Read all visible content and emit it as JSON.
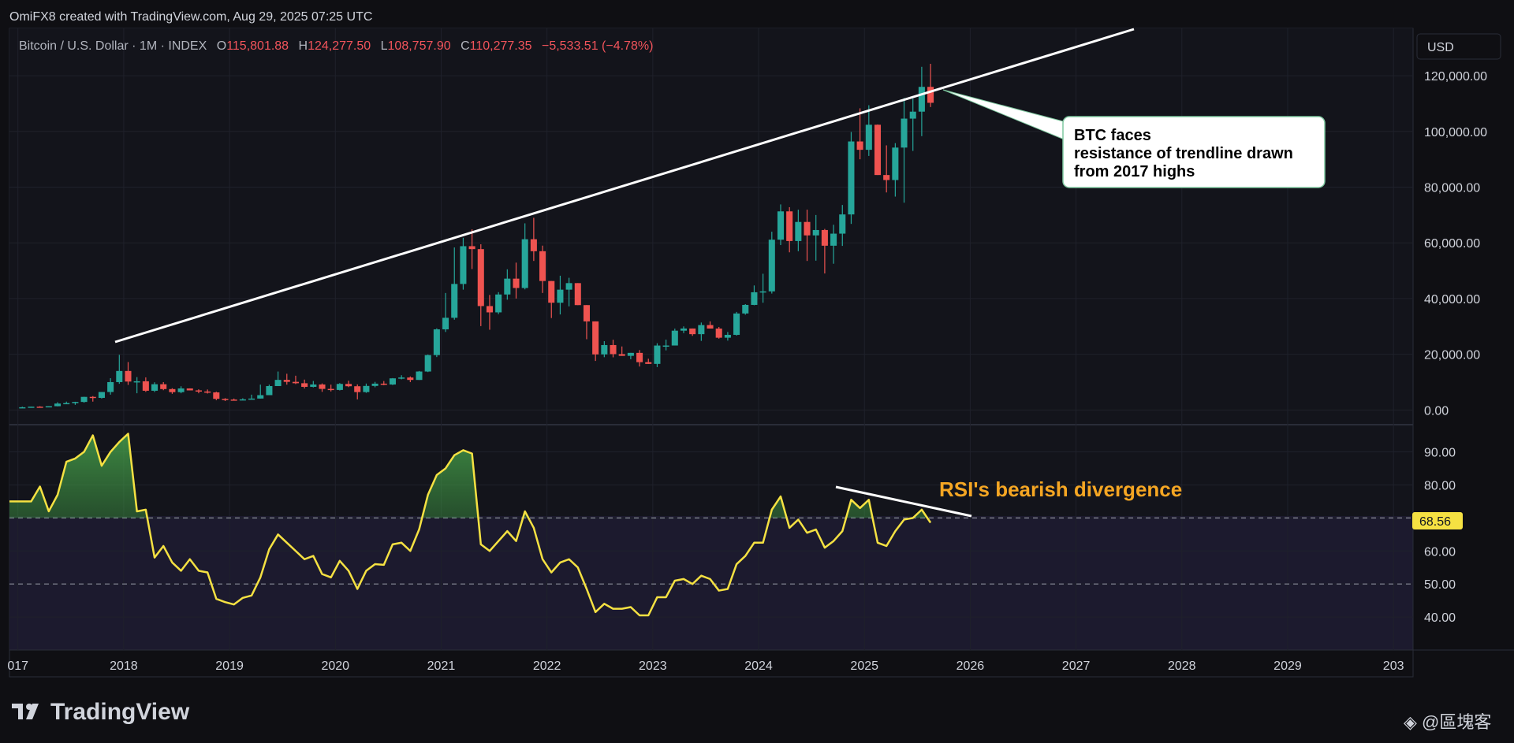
{
  "header": {
    "credit": "OmiFX8 created with TradingView.com, Aug 29, 2025 07:25 UTC",
    "symbol": "Bitcoin / U.S. Dollar · 1M · INDEX",
    "o_label": "O",
    "o_value": "115,801.88",
    "h_label": "H",
    "h_value": "124,277.50",
    "l_label": "L",
    "l_value": "108,757.90",
    "c_label": "C",
    "c_value": "110,277.35",
    "change": "−5,533.51 (−4.78%)"
  },
  "currency_button": "USD",
  "annotations": {
    "callout": [
      "BTC faces",
      "resistance of trendline drawn",
      "from 2017 highs"
    ],
    "rsi": "RSI's bearish divergence"
  },
  "rsi_current_badge": "68.56",
  "branding": {
    "logo": "TradingView",
    "watermark": "◈ @區塊客"
  },
  "colors": {
    "up": "#26a69a",
    "down": "#ef5350",
    "rsi_line": "#f5e142",
    "background": "#13141b",
    "annotation": "#f5a623"
  },
  "chart_data": [
    {
      "type": "candlestick",
      "title": "Bitcoin / U.S. Dollar · 1M · INDEX",
      "interval": "1M",
      "x_ticks": [
        "017",
        "2018",
        "2019",
        "2020",
        "2021",
        "2022",
        "2023",
        "2024",
        "2025",
        "2026",
        "2027",
        "2028",
        "2029",
        "203"
      ],
      "y_ticks": [
        "0.00",
        "20,000.00",
        "40,000.00",
        "60,000.00",
        "80,000.00",
        "100,000.00",
        "120,000.00"
      ],
      "ylim": [
        -5000,
        137000
      ],
      "start": "2017-01",
      "close": [
        970,
        1190,
        1080,
        1350,
        2300,
        2480,
        2880,
        4700,
        4340,
        6450,
        10000,
        14000,
        10200,
        10300,
        6900,
        9240,
        7500,
        6400,
        7730,
        7030,
        6630,
        6310,
        3990,
        3740,
        3460,
        3820,
        4100,
        5320,
        8580,
        10800,
        10090,
        9600,
        8300,
        9150,
        7560,
        7190,
        9350,
        8520,
        6420,
        8630,
        9450,
        9140,
        11350,
        11650,
        10780,
        13800,
        19700,
        28950,
        33100,
        45240,
        58800,
        57750,
        37300,
        35040,
        41460,
        47150,
        43790,
        61300,
        57000,
        46300,
        38500,
        43190,
        45540,
        37650,
        31800,
        19950,
        23300,
        20050,
        19430,
        20500,
        17160,
        16540,
        23130,
        23140,
        28470,
        29250,
        27210,
        30480,
        29230,
        25940,
        26970,
        34640,
        37720,
        42260,
        42580,
        61130,
        71300,
        60650,
        67500,
        62680,
        64600,
        58970,
        63300,
        70200,
        96400,
        93400,
        102400,
        84350,
        82550,
        94200,
        104600,
        107100,
        116000,
        110277
      ],
      "high": [
        1190,
        1200,
        1350,
        1360,
        2770,
        3000,
        2940,
        4750,
        4980,
        6470,
        11400,
        19800,
        17200,
        11800,
        11700,
        9940,
        10000,
        7800,
        8500,
        7760,
        7410,
        7350,
        6560,
        4230,
        4100,
        4200,
        5500,
        9100,
        9100,
        13800,
        13000,
        12300,
        10900,
        10400,
        9530,
        9100,
        9650,
        10500,
        9180,
        9480,
        10080,
        10380,
        11450,
        12470,
        12030,
        14000,
        19900,
        29300,
        42000,
        58350,
        61800,
        64850,
        59500,
        41300,
        42300,
        50500,
        52900,
        67000,
        69000,
        59000,
        39100,
        48200,
        47450,
        40000,
        32600,
        31800,
        24700,
        25200,
        22800,
        20500,
        21500,
        18400,
        23950,
        25250,
        29200,
        30000,
        28400,
        31400,
        31800,
        29800,
        28000,
        35200,
        38000,
        44700,
        48900,
        64000,
        73800,
        72800,
        71900,
        71900,
        70000,
        65000,
        66500,
        73600,
        99800,
        108300,
        109400,
        102500,
        95000,
        95800,
        112000,
        111800,
        123200,
        124277
      ],
      "low": [
        750,
        920,
        930,
        1000,
        1300,
        2100,
        1850,
        2620,
        3000,
        4100,
        5500,
        9400,
        9000,
        6000,
        6500,
        6450,
        7100,
        5800,
        6000,
        7200,
        6000,
        5900,
        3500,
        3200,
        3400,
        3550,
        3900,
        5000,
        7900,
        10700,
        9100,
        9300,
        7700,
        8100,
        6500,
        6650,
        7000,
        8200,
        3800,
        6150,
        8150,
        8880,
        8950,
        11000,
        10000,
        11300,
        13600,
        19000,
        28000,
        32400,
        43200,
        50600,
        30100,
        28800,
        34400,
        39600,
        40000,
        43300,
        53500,
        42000,
        33000,
        34300,
        37200,
        37900,
        25400,
        17600,
        18950,
        18900,
        20000,
        18200,
        15600,
        16750,
        15400,
        21400,
        25300,
        27600,
        26600,
        24800,
        29600,
        25600,
        24900,
        26700,
        34200,
        37600,
        38500,
        41800,
        59200,
        56600,
        57000,
        53500,
        53600,
        49000,
        52500,
        58900,
        66800,
        90000,
        91200,
        89200,
        78100,
        76600,
        74400,
        93000,
        98300,
        108757
      ],
      "rsi": {
        "name": "RSI",
        "y_ticks": [
          "40.00",
          "50.00",
          "60.00",
          "70.00",
          "80.00",
          "90.00"
        ],
        "ylim": [
          30,
          98
        ],
        "levels": [
          70,
          50
        ],
        "values": [
          75.0,
          75.0,
          79.5,
          72.0,
          77.0,
          87.0,
          88.0,
          90.0,
          95.0,
          85.8,
          90.0,
          93.0,
          95.5,
          72.0,
          72.5,
          58.0,
          61.5,
          56.5,
          54.0,
          57.5,
          54.0,
          53.5,
          45.5,
          44.5,
          43.8,
          45.8,
          46.5,
          52.0,
          60.5,
          65.0,
          62.5,
          60.0,
          57.5,
          58.5,
          53.0,
          52.0,
          57.0,
          54.0,
          48.5,
          54.0,
          56.0,
          55.8,
          62.0,
          62.5,
          60.0,
          66.5,
          77.0,
          83.0,
          85.0,
          89.0,
          90.5,
          89.5,
          62.0,
          60.0,
          63.0,
          66.0,
          63.0,
          72.0,
          67.0,
          57.5,
          53.5,
          56.5,
          57.5,
          55.0,
          48.5,
          41.5,
          44.0,
          42.5,
          42.5,
          43.0,
          40.5,
          40.5,
          46.0,
          46.0,
          51.0,
          51.5,
          50.0,
          52.5,
          51.5,
          48.0,
          48.5,
          56.0,
          58.5,
          62.5,
          62.5,
          72.5,
          76.5,
          67.0,
          69.5,
          65.5,
          66.5,
          61.0,
          63.0,
          66.0,
          75.5,
          73.0,
          75.5,
          62.5,
          61.5,
          66.0,
          69.5,
          70.0,
          72.5,
          68.56
        ]
      }
    }
  ]
}
